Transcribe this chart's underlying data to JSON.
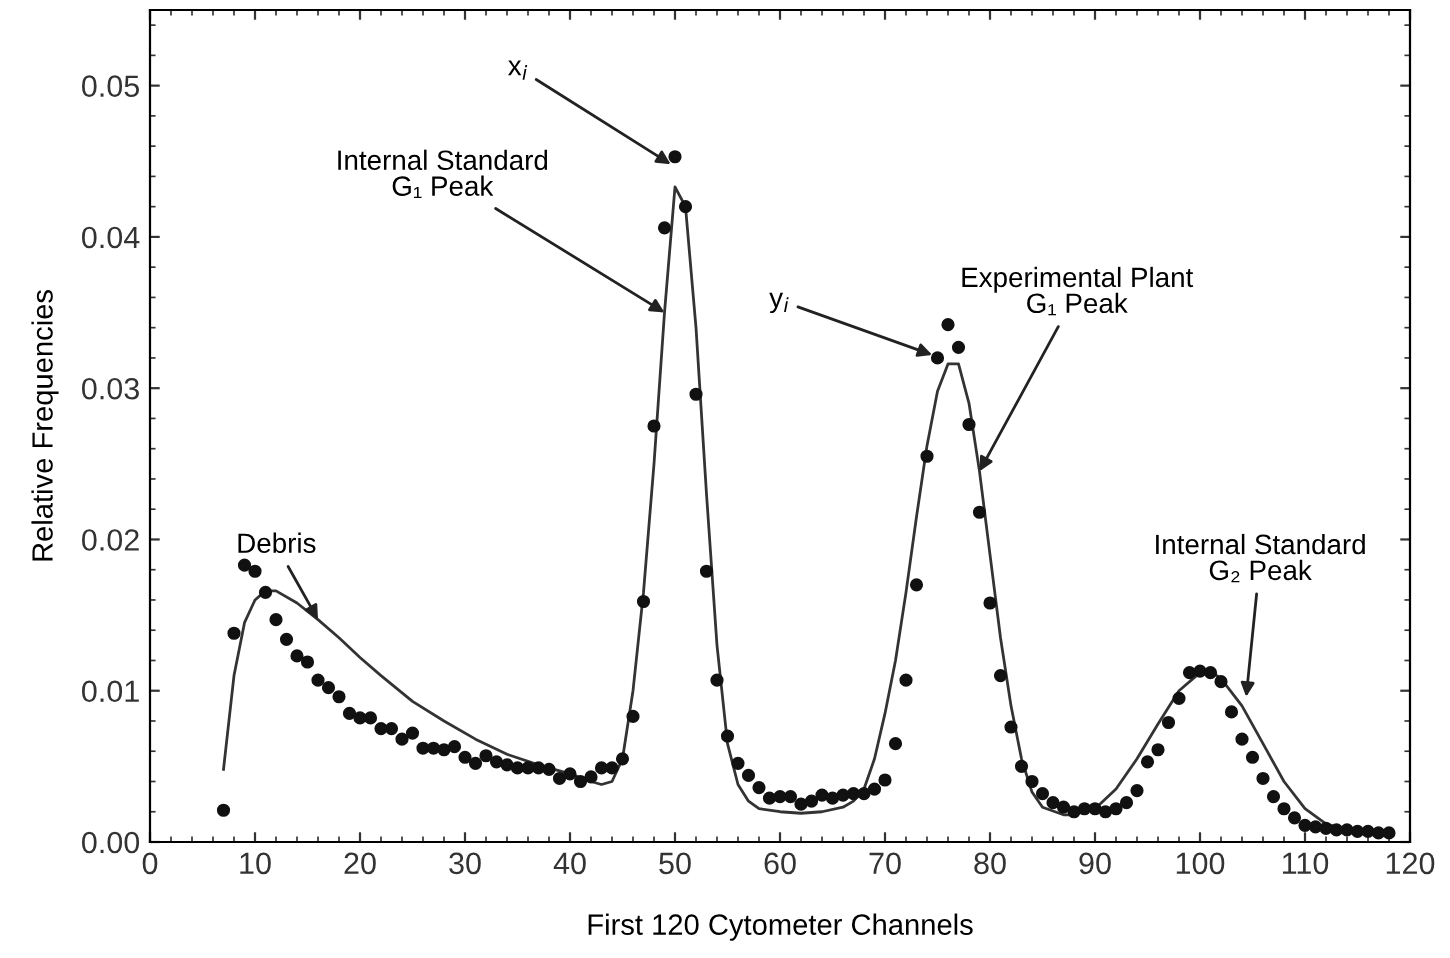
{
  "chart_data": {
    "type": "scatter",
    "xlabel": "First 120 Cytometer Channels",
    "ylabel": "Relative Frequencies",
    "xlim": [
      0,
      120
    ],
    "ylim": [
      0,
      0.055
    ],
    "xticks": [
      0,
      10,
      20,
      30,
      40,
      50,
      60,
      70,
      80,
      90,
      100,
      110,
      120
    ],
    "yticks": [
      {
        "value": 0,
        "label": "0.00"
      },
      {
        "value": 0.01,
        "label": "0.01"
      },
      {
        "value": 0.02,
        "label": "0.02"
      },
      {
        "value": 0.03,
        "label": "0.03"
      },
      {
        "value": 0.04,
        "label": "0.04"
      },
      {
        "value": 0.05,
        "label": "0.05"
      }
    ],
    "grid": false,
    "legend": false,
    "series": [
      {
        "marker": "circle",
        "color": "#111111",
        "x": [
          7,
          8,
          9,
          10,
          11,
          12,
          13,
          14,
          15,
          16,
          17,
          18,
          19,
          20,
          21,
          22,
          23,
          24,
          25,
          26,
          27,
          28,
          29,
          30,
          31,
          32,
          33,
          34,
          35,
          36,
          37,
          38,
          39,
          40,
          41,
          42,
          43,
          44,
          45,
          46,
          47,
          48,
          49,
          50,
          51,
          52,
          53,
          54,
          55,
          56,
          57,
          58,
          59,
          60,
          61,
          62,
          63,
          64,
          65,
          66,
          67,
          68,
          69,
          70,
          71,
          72,
          73,
          74,
          75,
          76,
          77,
          78,
          79,
          80,
          81,
          82,
          83,
          84,
          85,
          86,
          87,
          88,
          89,
          90,
          91,
          92,
          93,
          94,
          95,
          96,
          97,
          98,
          99,
          100,
          101,
          102,
          103,
          104,
          105,
          106,
          107,
          108,
          109,
          110,
          111,
          112,
          113,
          114,
          115,
          116,
          117,
          118
        ],
        "values": [
          0.0021,
          0.0138,
          0.0183,
          0.0179,
          0.0165,
          0.0147,
          0.0134,
          0.0123,
          0.0119,
          0.0107,
          0.0102,
          0.0096,
          0.0085,
          0.0082,
          0.0082,
          0.0075,
          0.0075,
          0.0068,
          0.0072,
          0.0062,
          0.0062,
          0.0061,
          0.0063,
          0.0056,
          0.0052,
          0.0057,
          0.0053,
          0.0051,
          0.0049,
          0.0049,
          0.0049,
          0.0048,
          0.0042,
          0.0045,
          0.004,
          0.0043,
          0.0049,
          0.0049,
          0.0055,
          0.0083,
          0.0159,
          0.0275,
          0.0406,
          0.0453,
          0.042,
          0.0296,
          0.0179,
          0.0107,
          0.007,
          0.0052,
          0.0044,
          0.0036,
          0.0029,
          0.003,
          0.003,
          0.0025,
          0.0027,
          0.0031,
          0.0029,
          0.0031,
          0.0032,
          0.0032,
          0.0035,
          0.0041,
          0.0065,
          0.0107,
          0.017,
          0.0255,
          0.032,
          0.0342,
          0.0327,
          0.0276,
          0.0218,
          0.0158,
          0.011,
          0.0076,
          0.005,
          0.004,
          0.0032,
          0.0026,
          0.0023,
          0.002,
          0.0022,
          0.0022,
          0.002,
          0.0022,
          0.0026,
          0.0034,
          0.0053,
          0.0061,
          0.0079,
          0.0095,
          0.0112,
          0.0113,
          0.0112,
          0.0106,
          0.0086,
          0.0068,
          0.0056,
          0.0042,
          0.003,
          0.0022,
          0.0016,
          0.0011,
          0.001,
          0.0009,
          0.0008,
          0.0008,
          0.0007,
          0.0007,
          0.0006,
          0.0006
        ]
      },
      {
        "type": "line",
        "marker": "none",
        "line_style": "solid",
        "color": "#333333",
        "x": [
          7,
          8,
          9,
          10,
          11,
          12,
          14,
          16,
          18,
          20,
          22,
          25,
          28,
          31,
          34,
          37,
          40,
          42,
          43,
          44,
          45,
          46,
          47,
          48,
          49,
          50,
          51,
          52,
          53,
          54,
          55,
          56,
          57,
          58,
          60,
          62,
          64,
          66,
          67,
          68,
          69,
          70,
          71,
          72,
          73,
          74,
          75,
          76,
          77,
          78,
          79,
          80,
          81,
          82,
          83,
          84,
          85,
          87,
          88,
          90,
          92,
          94,
          96,
          98,
          100,
          101,
          102,
          104,
          106,
          108,
          110,
          112,
          114,
          116,
          118
        ],
        "values": [
          0.0048,
          0.011,
          0.0145,
          0.016,
          0.0166,
          0.0166,
          0.0158,
          0.0147,
          0.0135,
          0.0122,
          0.011,
          0.0093,
          0.008,
          0.0068,
          0.0058,
          0.0051,
          0.0045,
          0.004,
          0.0038,
          0.004,
          0.0055,
          0.01,
          0.0165,
          0.025,
          0.035,
          0.0433,
          0.042,
          0.034,
          0.023,
          0.013,
          0.0065,
          0.0038,
          0.0027,
          0.0022,
          0.002,
          0.0019,
          0.002,
          0.0023,
          0.0027,
          0.0035,
          0.0055,
          0.0085,
          0.012,
          0.0165,
          0.0215,
          0.0262,
          0.0298,
          0.0316,
          0.0316,
          0.029,
          0.0245,
          0.019,
          0.0135,
          0.009,
          0.0055,
          0.0033,
          0.0023,
          0.0018,
          0.0018,
          0.0022,
          0.0035,
          0.0055,
          0.0078,
          0.01,
          0.0112,
          0.0113,
          0.0108,
          0.009,
          0.0065,
          0.004,
          0.0022,
          0.0012,
          0.0008,
          0.0006,
          0.0005
        ]
      }
    ],
    "annotations": [
      {
        "text": "Debris",
        "x": 16,
        "y": 0.0147
      },
      {
        "text": "Internal Standard\nG₁ Peak",
        "x": 49,
        "y": 0.035
      },
      {
        "text": "x$_{i}$",
        "x": 49.6,
        "y": 0.0448
      },
      {
        "text": "y$_{i}$",
        "x": 74.5,
        "y": 0.0322
      },
      {
        "text": "Experimental Plant\nG₁ Peak",
        "x": 79,
        "y": 0.0245
      },
      {
        "text": "Internal Standard\nG₂ Peak",
        "x": 104.4,
        "y": 0.0096
      }
    ]
  }
}
